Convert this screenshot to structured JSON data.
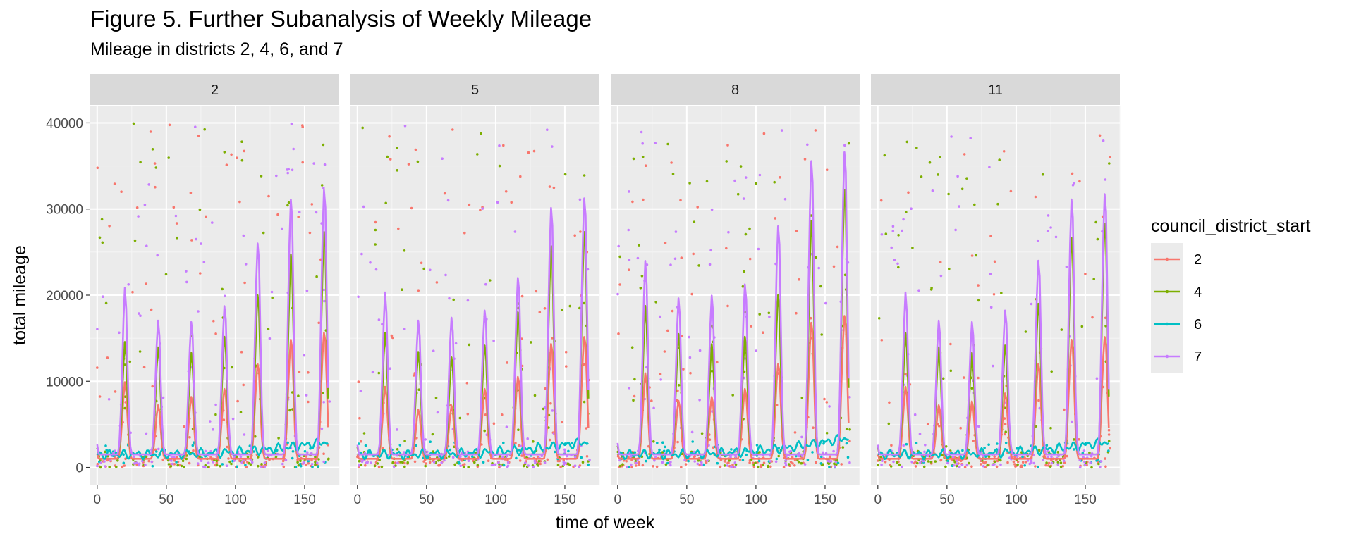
{
  "header": {
    "title": "Figure 5. Further Subanalysis of Weekly Mileage",
    "subtitle": "Mileage in districts 2, 4, 6, and 7"
  },
  "chart_data": {
    "type": "line",
    "title": "Figure 5. Further Subanalysis of Weekly Mileage",
    "subtitle": "Mileage in districts 2, 4, 6, and 7",
    "xlabel": "time of week",
    "ylabel": "total mileage",
    "facets": [
      "2",
      "5",
      "8",
      "11"
    ],
    "xlim": [
      -5,
      175
    ],
    "ylim": [
      -2000,
      42000
    ],
    "x_ticks": [
      0,
      50,
      100,
      150
    ],
    "y_ticks": [
      0,
      10000,
      20000,
      30000,
      40000
    ],
    "y_tick_labels": [
      "0",
      "10000",
      "20000",
      "30000",
      "40000"
    ],
    "x_tick_labels": [
      "0",
      "50",
      "100",
      "150"
    ],
    "legend": {
      "title": "council_district_start",
      "position": "right",
      "entries": [
        {
          "label": "2",
          "color": "#F8766D"
        },
        {
          "label": "4",
          "color": "#7CAE00"
        },
        {
          "label": "6",
          "color": "#00BFC4"
        },
        {
          "label": "7",
          "color": "#C77CFF"
        }
      ]
    },
    "panels": [
      {
        "facet": "2",
        "series": [
          {
            "name": "2",
            "peaks": [
              9500,
              7000,
              8000,
              9000,
              12000,
              15000,
              16000
            ],
            "base": 1000
          },
          {
            "name": "4",
            "peaks": [
              14000,
              13500,
              13000,
              15000,
              20000,
              25000,
              28000
            ],
            "base": 1500
          },
          {
            "name": "6",
            "level": 1500,
            "end": 3000
          },
          {
            "name": "7",
            "peaks": [
              20000,
              16500,
              16500,
              18500,
              26000,
              31500,
              33000
            ],
            "base": 1500
          }
        ]
      },
      {
        "facet": "5",
        "series": [
          {
            "name": "2",
            "peaks": [
              9000,
              6500,
              7000,
              9000,
              10500,
              14500,
              15500
            ],
            "base": 1000
          },
          {
            "name": "4",
            "peaks": [
              15000,
              13000,
              12500,
              14000,
              18000,
              26000,
              28000
            ],
            "base": 1500
          },
          {
            "name": "6",
            "level": 1500,
            "end": 3000
          },
          {
            "name": "7",
            "peaks": [
              19500,
              16500,
              17000,
              18000,
              22000,
              30500,
              32000
            ],
            "base": 1500
          }
        ]
      },
      {
        "facet": "8",
        "series": [
          {
            "name": "2",
            "peaks": [
              10500,
              7500,
              8000,
              9000,
              12000,
              17000,
              18000
            ],
            "base": 1000
          },
          {
            "name": "4",
            "peaks": [
              18000,
              15000,
              14000,
              15000,
              20000,
              29000,
              33000
            ],
            "base": 1500
          },
          {
            "name": "6",
            "level": 1500,
            "end": 3500
          },
          {
            "name": "7",
            "peaks": [
              23000,
              19000,
              19500,
              21000,
              28000,
              36000,
              37500
            ],
            "base": 1500
          }
        ]
      },
      {
        "facet": "11",
        "series": [
          {
            "name": "2",
            "peaks": [
              9000,
              7000,
              7500,
              8500,
              12000,
              15000,
              15500
            ],
            "base": 1000
          },
          {
            "name": "4",
            "peaks": [
              15000,
              13500,
              13000,
              14000,
              19000,
              27000,
              29000
            ],
            "base": 1500
          },
          {
            "name": "6",
            "level": 1500,
            "end": 3000
          },
          {
            "name": "7",
            "peaks": [
              19500,
              16500,
              16500,
              18000,
              24000,
              31500,
              32500
            ],
            "base": 1500
          }
        ]
      }
    ]
  }
}
